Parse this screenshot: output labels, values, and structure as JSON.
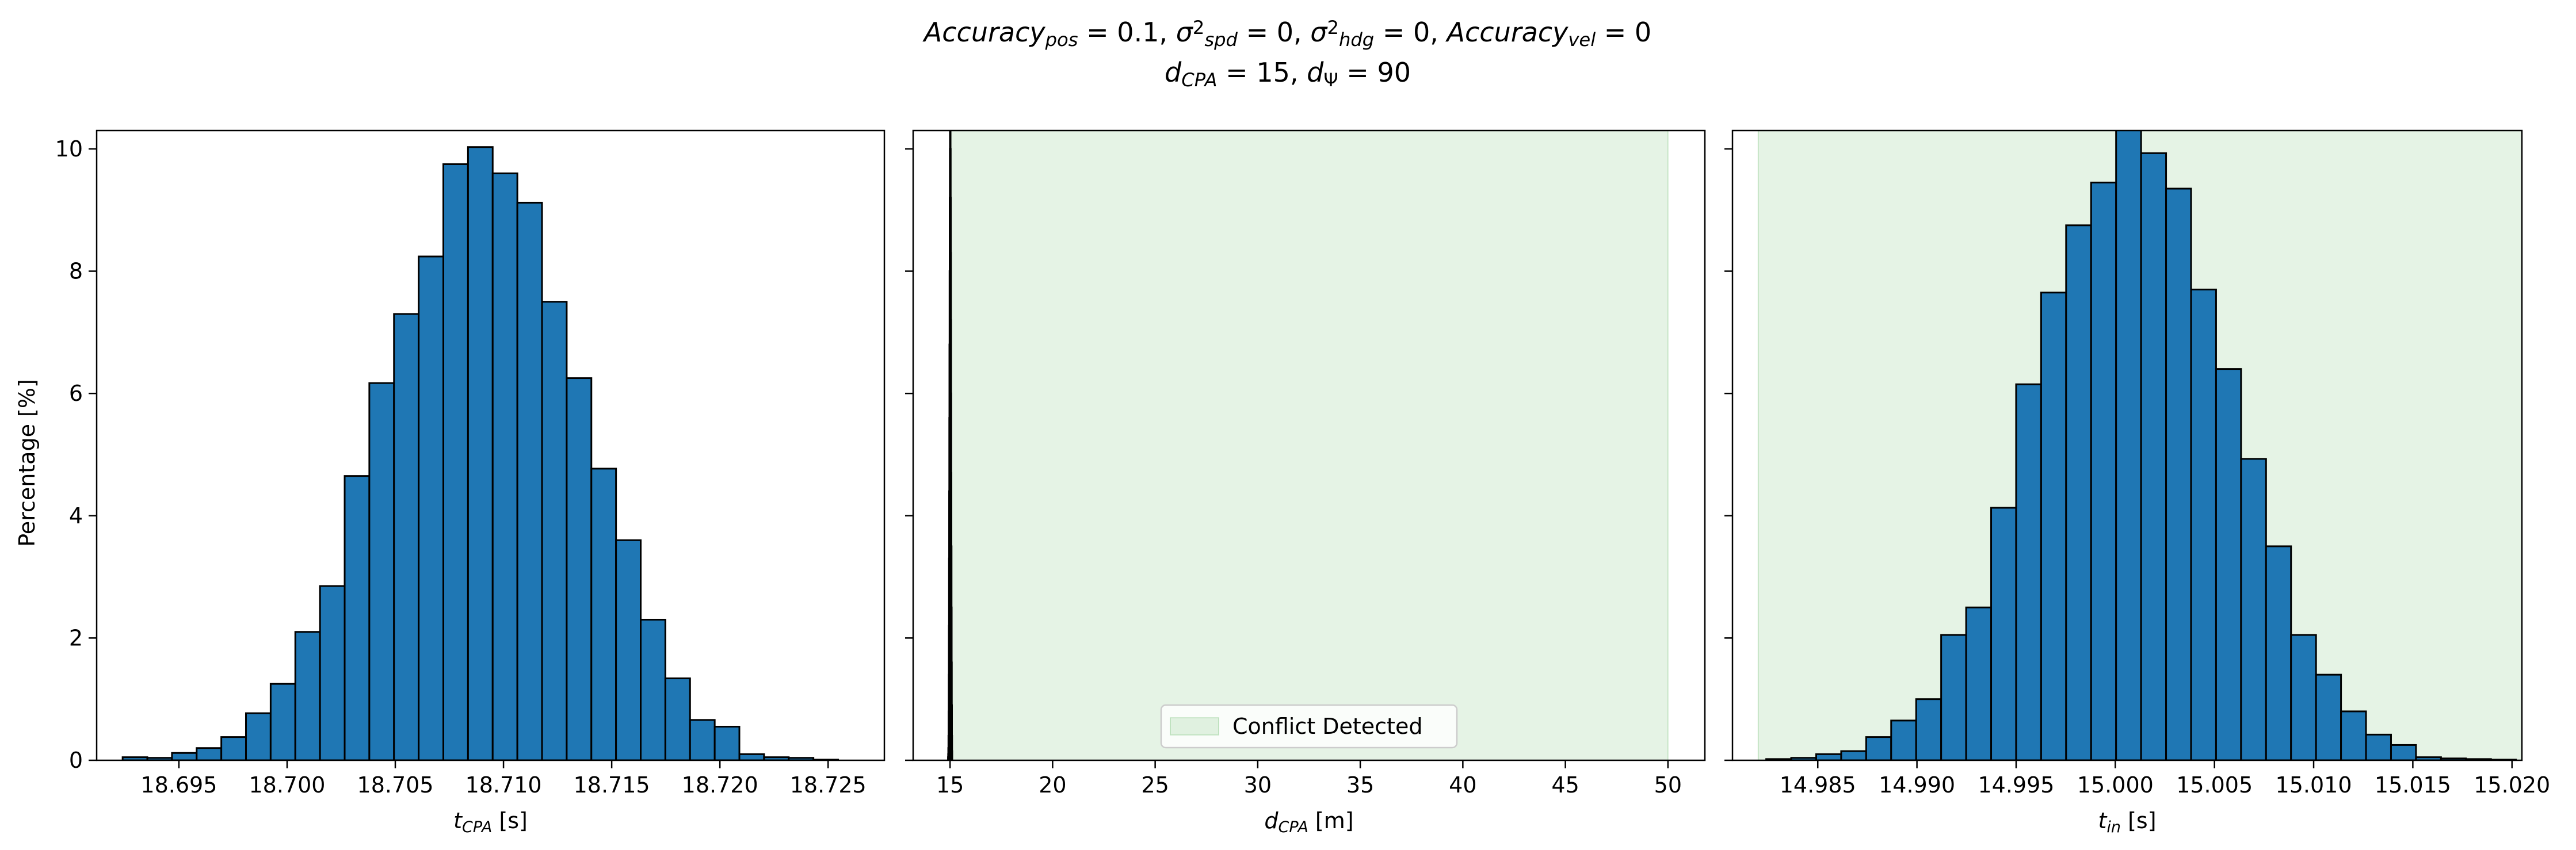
{
  "figure_title": {
    "line1": [
      {
        "t": "Accuracy",
        "i": true
      },
      {
        "t": "pos",
        "i": true,
        "sub": true
      },
      {
        "t": " = 0.1, ",
        "i": false
      },
      {
        "t": "σ",
        "i": true
      },
      {
        "t": "2",
        "sup": true,
        "i": false
      },
      {
        "t": "spd",
        "i": true,
        "sub": true
      },
      {
        "t": " = 0, ",
        "i": false
      },
      {
        "t": "σ",
        "i": true
      },
      {
        "t": "2",
        "sup": true,
        "i": false
      },
      {
        "t": "hdg",
        "i": true,
        "sub": true
      },
      {
        "t": " = 0, ",
        "i": false
      },
      {
        "t": "Accuracy",
        "i": true
      },
      {
        "t": "vel",
        "i": true,
        "sub": true
      },
      {
        "t": " = 0",
        "i": false
      }
    ],
    "line2": [
      {
        "t": "d",
        "i": true
      },
      {
        "t": "CPA",
        "i": true,
        "sub": true
      },
      {
        "t": " = 15, ",
        "i": false
      },
      {
        "t": "d",
        "i": true
      },
      {
        "t": "Ψ",
        "i": false,
        "sub": true
      },
      {
        "t": " = 90",
        "i": false
      }
    ]
  },
  "shared_ylabel": "Percentage [%]",
  "colors": {
    "bar": "#1f77b4",
    "edge": "#000000",
    "conflict": "#2ca02c"
  },
  "chart_data": [
    {
      "type": "bar",
      "xlabel": {
        "main": "t",
        "sub": "CPA",
        "unit": " [s]"
      },
      "xlim": [
        18.6912,
        18.7276
      ],
      "ylim": [
        0,
        10.3
      ],
      "xticks": [
        18.695,
        18.7,
        18.705,
        18.71,
        18.715,
        18.72,
        18.725
      ],
      "xtick_labels": [
        "18.695",
        "18.700",
        "18.705",
        "18.710",
        "18.715",
        "18.720",
        "18.725"
      ],
      "yticks": [
        0,
        2,
        4,
        6,
        8,
        10
      ],
      "ytick_labels": [
        "0",
        "2",
        "4",
        "6",
        "8",
        "10"
      ],
      "bin_start": 18.6924,
      "bin_width": 0.00114,
      "values": [
        0.05,
        0.04,
        0.12,
        0.2,
        0.38,
        0.77,
        1.25,
        2.1,
        2.85,
        4.65,
        6.17,
        7.3,
        8.24,
        9.75,
        10.03,
        9.6,
        9.12,
        7.5,
        6.25,
        4.77,
        3.6,
        2.3,
        1.34,
        0.66,
        0.55,
        0.1,
        0.05,
        0.04,
        0.01
      ]
    },
    {
      "type": "bar",
      "xlabel": {
        "main": "d",
        "sub": "CPA",
        "unit": " [m]"
      },
      "xlim": [
        13.2,
        51.8
      ],
      "ylim": [
        0,
        10.3
      ],
      "xticks": [
        15,
        20,
        25,
        30,
        35,
        40,
        45,
        50
      ],
      "xtick_labels": [
        "15",
        "20",
        "25",
        "30",
        "35",
        "40",
        "45",
        "50"
      ],
      "yticks": [
        0,
        2,
        4,
        6,
        8,
        10
      ],
      "ytick_labels": [
        "",
        "",
        "",
        "",
        "",
        ""
      ],
      "shaded_region": {
        "x": [
          15.0,
          50.0
        ],
        "label": "Conflict Detected"
      },
      "legend_position": "lower-center",
      "bin_start": 14.9,
      "bin_width": 0.0069,
      "values": [
        0.05,
        0.1,
        0.2,
        0.4,
        0.8,
        1.4,
        2.2,
        3.3,
        4.4,
        5.6,
        6.8,
        8.0,
        9.2,
        10.0,
        10.3,
        10.3,
        10.3,
        10.0,
        9.2,
        8.3,
        7.2,
        6.0,
        4.7,
        3.5,
        2.5,
        1.6,
        0.9,
        0.4,
        0.15
      ]
    },
    {
      "type": "bar",
      "xlabel": {
        "main": "t",
        "sub": "in",
        "unit": " [s]"
      },
      "xlim": [
        14.9807,
        15.0205
      ],
      "ylim": [
        0,
        10.3
      ],
      "xticks": [
        14.985,
        14.99,
        14.995,
        15.0,
        15.005,
        15.01,
        15.015,
        15.02
      ],
      "xtick_labels": [
        "14.985",
        "14.990",
        "14.995",
        "15.000",
        "15.005",
        "15.010",
        "15.015",
        "15.020"
      ],
      "yticks": [
        0,
        2,
        4,
        6,
        8,
        10
      ],
      "ytick_labels": [
        "",
        "",
        "",
        "",
        "",
        ""
      ],
      "shaded_region": {
        "x": [
          14.982,
          15.0205
        ],
        "label": "Conflict Detected"
      },
      "bin_start": 14.9824,
      "bin_width": 0.00126,
      "values": [
        0.02,
        0.04,
        0.1,
        0.15,
        0.38,
        0.65,
        1.0,
        2.05,
        2.5,
        4.13,
        6.15,
        7.65,
        8.75,
        9.45,
        10.4,
        9.93,
        9.35,
        7.7,
        6.4,
        4.93,
        3.5,
        2.05,
        1.4,
        0.8,
        0.42,
        0.25,
        0.05,
        0.03,
        0.02,
        0.01
      ]
    }
  ]
}
